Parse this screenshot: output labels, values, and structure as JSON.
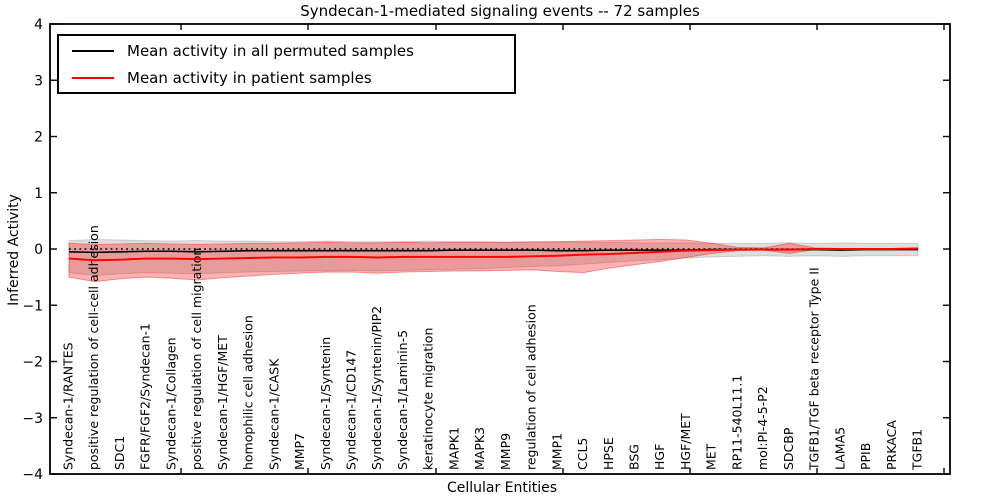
{
  "title": "Syndecan-1-mediated signaling events -- 72 samples",
  "legend": {
    "items": [
      {
        "label": "Mean activity in all permuted samples",
        "color": "#000000"
      },
      {
        "label": "Mean activity in patient samples",
        "color": "#ff0000"
      }
    ]
  },
  "axes": {
    "xlabel": "Cellular Entities",
    "ylabel": "Inferred Activity",
    "ytick_labels": [
      "4",
      "3",
      "2",
      "1",
      "0",
      "−1",
      "−2",
      "−3",
      "−4"
    ],
    "ytick_values": [
      4,
      3,
      2,
      1,
      0,
      -1,
      -2,
      -3,
      -4
    ]
  },
  "chart_data": {
    "type": "line",
    "title": "Syndecan-1-mediated signaling events -- 72 samples",
    "xlabel": "Cellular Entities",
    "ylabel": "Inferred Activity",
    "ylim": [
      -4,
      4
    ],
    "grid": false,
    "legend_position": "upper left",
    "categories": [
      "Syndecan-1/RANTES",
      "positive regulation of cell-cell adhesion",
      "SDC1",
      "FGFR/FGF2/Syndecan-1",
      "Syndecan-1/Collagen",
      "positive regulation of cell migration",
      "Syndecan-1/HGF/MET",
      "homophilic cell adhesion",
      "Syndecan-1/CASK",
      "MMP7",
      "Syndecan-1/Syntenin",
      "Syndecan-1/CD147",
      "Syndecan-1/Syntenin/PIP2",
      "Syndecan-1/Laminin-5",
      "keratinocyte migration",
      "MAPK1",
      "MAPK3",
      "MMP9",
      "regulation of cell adhesion",
      "MMP1",
      "CCL5",
      "HPSE",
      "BSG",
      "HGF",
      "HGF/MET",
      "MET",
      "RP11-540L11.1",
      "mol:PI-4-5-P2",
      "SDCBP",
      "TGFB1/TGF beta receptor Type II",
      "LAMA5",
      "PPIB",
      "PRKACA",
      "TGFB1"
    ],
    "series": [
      {
        "name": "Mean activity in all permuted samples",
        "color": "#000000",
        "style": "solid",
        "values": [
          -0.05,
          -0.06,
          -0.05,
          -0.04,
          -0.04,
          -0.05,
          -0.04,
          -0.03,
          -0.03,
          -0.03,
          -0.03,
          -0.03,
          -0.03,
          -0.03,
          -0.03,
          -0.02,
          -0.02,
          -0.02,
          -0.02,
          -0.03,
          -0.03,
          -0.02,
          -0.02,
          -0.02,
          -0.02,
          -0.01,
          -0.01,
          -0.01,
          -0.01,
          -0.01,
          -0.02,
          -0.01,
          -0.01,
          -0.01
        ]
      },
      {
        "name": "Mean activity in patient samples",
        "color": "#ff0000",
        "style": "solid",
        "values": [
          -0.17,
          -0.2,
          -0.19,
          -0.17,
          -0.17,
          -0.18,
          -0.17,
          -0.16,
          -0.15,
          -0.15,
          -0.14,
          -0.14,
          -0.15,
          -0.14,
          -0.14,
          -0.14,
          -0.14,
          -0.14,
          -0.13,
          -0.12,
          -0.1,
          -0.09,
          -0.07,
          -0.05,
          -0.03,
          -0.02,
          -0.01,
          -0.01,
          -0.01,
          0.0,
          0.0,
          0.0,
          0.0,
          0.01
        ]
      },
      {
        "name": "zero reference",
        "color": "#000000",
        "style": "dotted",
        "values": [
          0,
          0,
          0,
          0,
          0,
          0,
          0,
          0,
          0,
          0,
          0,
          0,
          0,
          0,
          0,
          0,
          0,
          0,
          0,
          0,
          0,
          0,
          0,
          0,
          0,
          0,
          0,
          0,
          0,
          0,
          0,
          0,
          0,
          0
        ]
      }
    ],
    "bands": [
      {
        "name": "permuted samples spread",
        "fill": "rgba(0,0,0,0.13)",
        "edge": "rgba(0,0,0,0.15)",
        "upper": [
          0.15,
          0.17,
          0.16,
          0.15,
          0.14,
          0.15,
          0.14,
          0.14,
          0.13,
          0.13,
          0.14,
          0.13,
          0.13,
          0.13,
          0.14,
          0.13,
          0.13,
          0.12,
          0.12,
          0.13,
          0.12,
          0.12,
          0.11,
          0.11,
          0.11,
          0.1,
          0.1,
          0.1,
          0.11,
          0.1,
          0.11,
          0.1,
          0.1,
          0.1
        ],
        "lower": [
          -0.42,
          -0.47,
          -0.44,
          -0.42,
          -0.43,
          -0.44,
          -0.42,
          -0.41,
          -0.4,
          -0.39,
          -0.39,
          -0.38,
          -0.39,
          -0.38,
          -0.37,
          -0.36,
          -0.35,
          -0.33,
          -0.31,
          -0.3,
          -0.27,
          -0.24,
          -0.21,
          -0.19,
          -0.16,
          -0.14,
          -0.13,
          -0.12,
          -0.13,
          -0.12,
          -0.13,
          -0.12,
          -0.12,
          -0.12
        ]
      },
      {
        "name": "patient samples spread",
        "fill": "rgba(255,0,0,0.30)",
        "edge": "rgba(255,0,0,0.38)",
        "upper": [
          0.1,
          0.08,
          0.09,
          0.1,
          0.09,
          0.08,
          0.09,
          0.1,
          0.1,
          0.11,
          0.12,
          0.11,
          0.11,
          0.12,
          0.11,
          0.12,
          0.12,
          0.12,
          0.13,
          0.13,
          0.14,
          0.15,
          0.16,
          0.17,
          0.16,
          0.1,
          0.03,
          0.02,
          0.1,
          0.02,
          0.01,
          0.01,
          0.01,
          0.02
        ],
        "lower": [
          -0.5,
          -0.58,
          -0.53,
          -0.5,
          -0.52,
          -0.55,
          -0.51,
          -0.48,
          -0.45,
          -0.43,
          -0.41,
          -0.41,
          -0.43,
          -0.41,
          -0.4,
          -0.39,
          -0.39,
          -0.38,
          -0.37,
          -0.4,
          -0.42,
          -0.34,
          -0.28,
          -0.22,
          -0.15,
          -0.08,
          -0.03,
          -0.02,
          -0.08,
          -0.01,
          -0.01,
          -0.01,
          -0.01,
          -0.01
        ]
      }
    ]
  }
}
